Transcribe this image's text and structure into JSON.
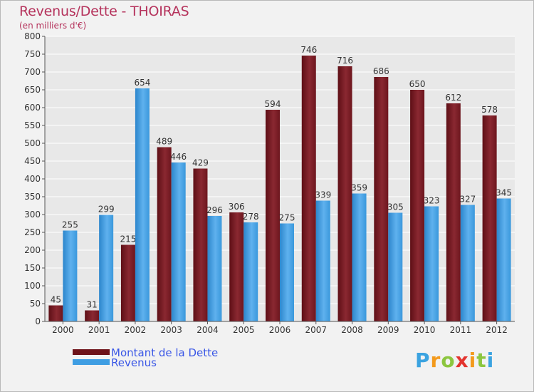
{
  "header": {
    "title": "Revenus/Dette - THOIRAS",
    "subtitle": "(en milliers d'€)"
  },
  "brand": {
    "letters": [
      "P",
      "r",
      "o",
      "x",
      "i",
      "t",
      "i"
    ],
    "colors": [
      "#3ba3e0",
      "#f39a1c",
      "#8cc63f",
      "#e3342f",
      "#f39a1c",
      "#8cc63f",
      "#3ba3e0"
    ]
  },
  "colors": {
    "dette": "#7e1c24",
    "revenus": "#3f9ee3",
    "grid": "#ffffff",
    "plot_bg": "#e8e8e8"
  },
  "chart_data": {
    "type": "bar",
    "title": "Revenus/Dette - THOIRAS",
    "subtitle": "(en milliers d'€)",
    "categories": [
      "2000",
      "2001",
      "2002",
      "2003",
      "2004",
      "2005",
      "2006",
      "2007",
      "2008",
      "2009",
      "2010",
      "2011",
      "2012"
    ],
    "series": [
      {
        "name": "Montant de la Dette",
        "values": [
          45,
          31,
          215,
          489,
          429,
          306,
          594,
          746,
          716,
          686,
          650,
          612,
          578
        ]
      },
      {
        "name": "Revenus",
        "values": [
          255,
          299,
          654,
          446,
          296,
          278,
          275,
          339,
          359,
          305,
          323,
          327,
          345
        ]
      }
    ],
    "ylim": [
      0,
      800
    ],
    "ytick_step": 50,
    "grid": true,
    "legend_position": "bottom-left"
  }
}
